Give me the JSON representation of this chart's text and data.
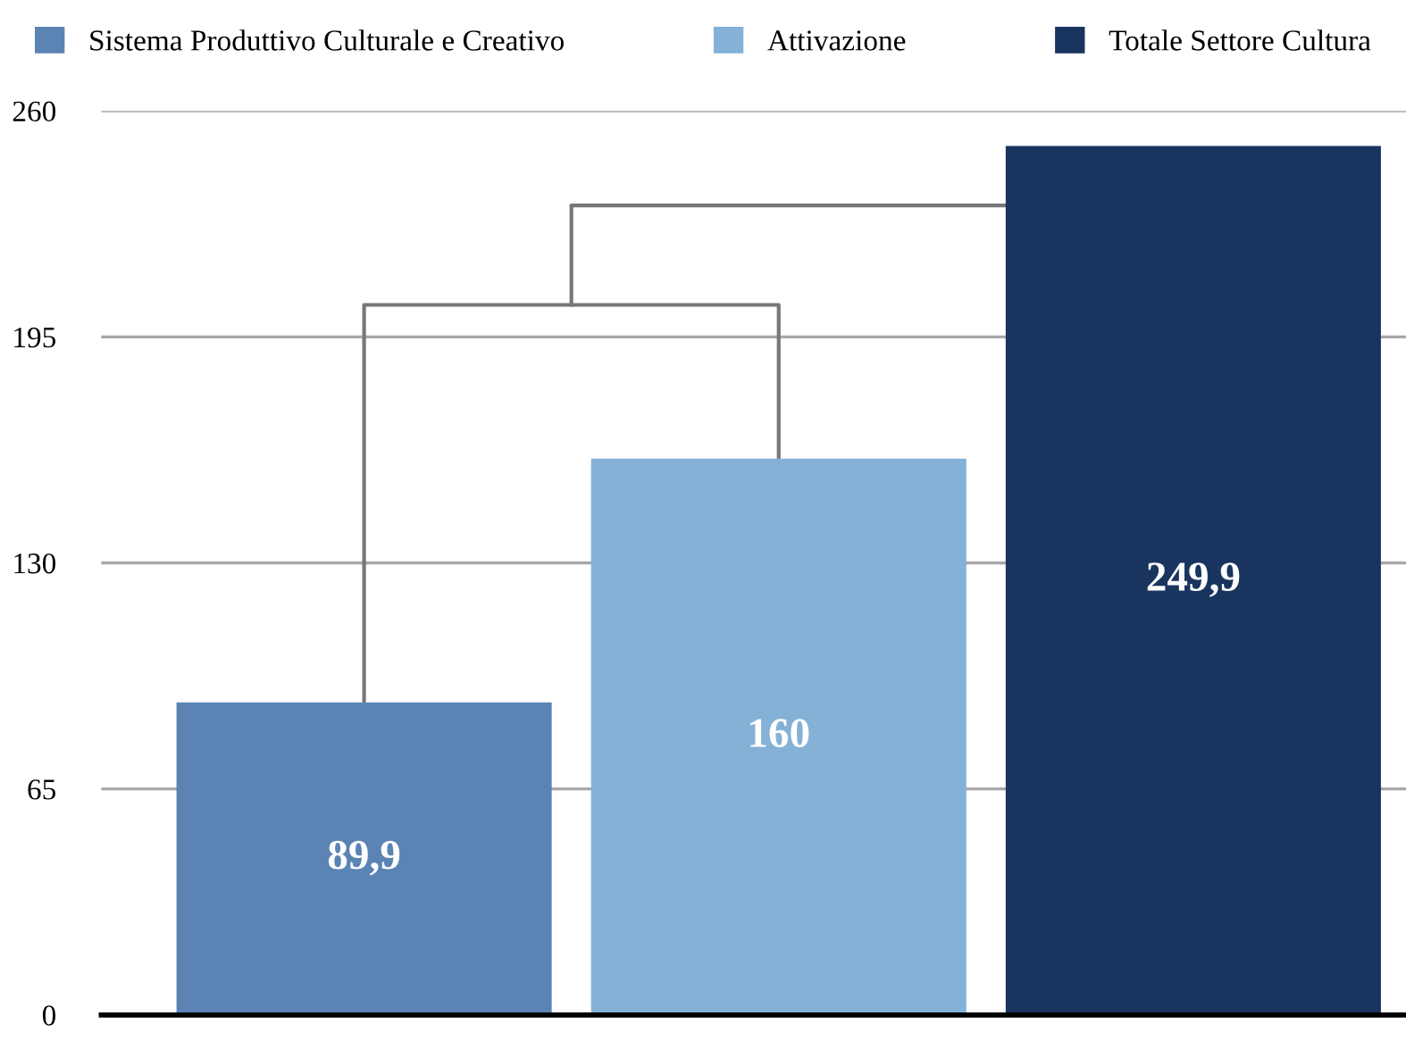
{
  "chart_data": {
    "type": "bar",
    "categories": [
      null,
      null,
      null
    ],
    "series": [
      {
        "name": "Sistema Produttivo Culturale e Creativo",
        "color": "#5b84b5",
        "values": [
          89.9,
          null,
          null
        ],
        "value_labels": [
          "89,9",
          null,
          null
        ]
      },
      {
        "name": "Attivazione",
        "color": "#84b1d5",
        "values": [
          null,
          160,
          null
        ],
        "value_labels": [
          null,
          "160",
          null
        ]
      },
      {
        "name": "Totale Settore Cultura",
        "color": "#19355f",
        "values": [
          null,
          null,
          249.9
        ],
        "value_labels": [
          null,
          null,
          "249,9"
        ]
      }
    ],
    "ylim": [
      0,
      260
    ],
    "yticks": [
      0,
      65,
      130,
      195,
      260
    ],
    "grid": "y",
    "legend": "top"
  }
}
